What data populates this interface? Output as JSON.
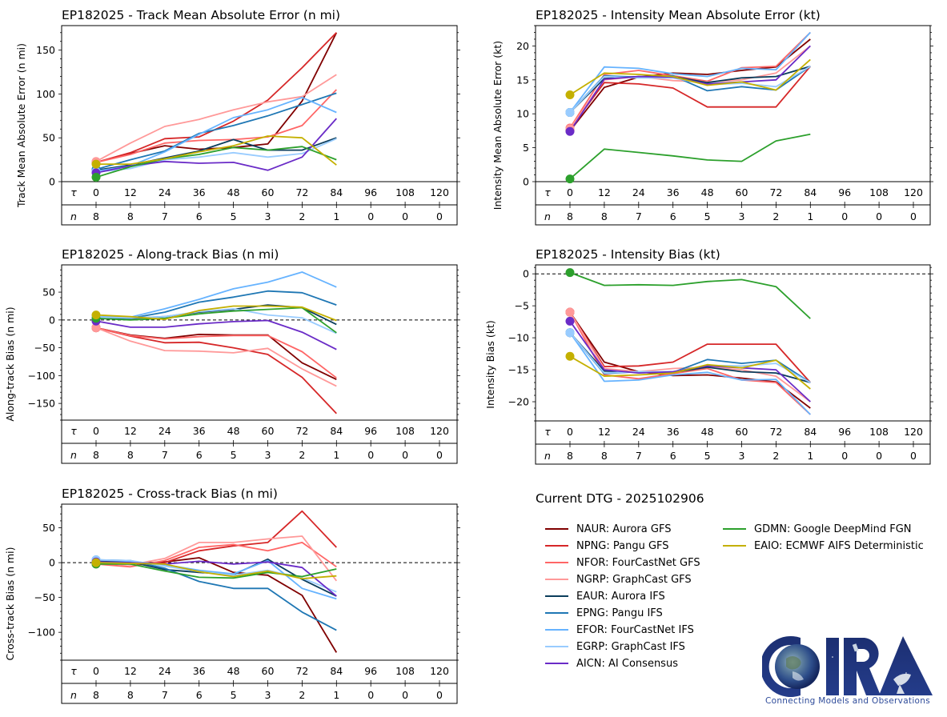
{
  "figure": {
    "dtg_title": "Current DTG - 2025102906"
  },
  "legend": [
    {
      "code": "NAUR",
      "label": "NAUR: Aurora GFS",
      "color": "#800000"
    },
    {
      "code": "NPNG",
      "label": "NPNG: Pangu GFS",
      "color": "#d62728"
    },
    {
      "code": "NFOR",
      "label": "NFOR: FourCastNet GFS",
      "color": "#ff6666"
    },
    {
      "code": "NGRP",
      "label": "NGRP: GraphCast GFS",
      "color": "#ff9999"
    },
    {
      "code": "EAUR",
      "label": "EAUR: Aurora IFS",
      "color": "#0b3d5c"
    },
    {
      "code": "EPNG",
      "label": "EPNG: Pangu IFS",
      "color": "#1f77b4"
    },
    {
      "code": "EFOR",
      "label": "EFOR: FourCastNet IFS",
      "color": "#66b3ff"
    },
    {
      "code": "EGRP",
      "label": "EGRP: GraphCast IFS",
      "color": "#99ccff"
    },
    {
      "code": "AICN",
      "label": "AICN: AI Consensus",
      "color": "#6a2bc7"
    },
    {
      "code": "GDMN",
      "label": "GDMN: Google DeepMind FGN",
      "color": "#2ca02c"
    },
    {
      "code": "EAIO",
      "label": "EAIO: ECMWF AIFS Deterministic",
      "color": "#c4b000"
    }
  ],
  "logo": {
    "text": "CIRA",
    "tagline": "Connecting Models and Observations"
  },
  "chart_data": [
    {
      "id": "track",
      "type": "line",
      "title": "EP182025 - Track Mean Absolute Error (n mi)",
      "ylabel": "Track Mean Absolute Error (n mi)",
      "xlabel": "",
      "ylim": [
        0,
        178
      ],
      "yticks": [
        0,
        50,
        100,
        150
      ],
      "zero_line": false,
      "tau_label": "τ",
      "n_label": "n",
      "x": [
        0,
        12,
        24,
        36,
        48,
        60,
        72,
        84
      ],
      "tau_ticks": [
        0,
        12,
        24,
        36,
        48,
        60,
        72,
        84,
        96,
        108,
        120
      ],
      "n_counts": [
        8,
        8,
        7,
        6,
        5,
        3,
        2,
        1,
        0,
        0,
        0
      ],
      "series": [
        {
          "name": "NAUR",
          "values": [
            22,
            32,
            41,
            37,
            39,
            43,
            92,
            170
          ]
        },
        {
          "name": "NPNG",
          "values": [
            22,
            33,
            49,
            51,
            69,
            93,
            130,
            170
          ]
        },
        {
          "name": "NFOR",
          "values": [
            22,
            31,
            44,
            47,
            48,
            51,
            64,
            105
          ]
        },
        {
          "name": "NGRP",
          "values": [
            23,
            44,
            63,
            71,
            82,
            91,
            97,
            122
          ]
        },
        {
          "name": "EAUR",
          "values": [
            13,
            19,
            27,
            35,
            48,
            36,
            36,
            50
          ]
        },
        {
          "name": "EPNG",
          "values": [
            14,
            25,
            35,
            55,
            64,
            75,
            88,
            101
          ]
        },
        {
          "name": "EFOR",
          "values": [
            12,
            18,
            34,
            54,
            73,
            82,
            96,
            79
          ]
        },
        {
          "name": "EGRP",
          "values": [
            11,
            15,
            25,
            28,
            33,
            28,
            32,
            49
          ]
        },
        {
          "name": "AICN",
          "values": [
            10,
            18,
            23,
            21,
            22,
            13,
            28,
            72
          ]
        },
        {
          "name": "GDMN",
          "values": [
            5,
            17,
            26,
            31,
            39,
            36,
            40,
            25
          ]
        },
        {
          "name": "EAIO",
          "values": [
            20,
            20,
            26,
            34,
            41,
            52,
            50,
            19
          ]
        }
      ]
    },
    {
      "id": "intensity",
      "type": "line",
      "title": "EP182025 - Intensity Mean Absolute Error (kt)",
      "ylabel": "Intensity Mean Absolute Error (kt)",
      "xlabel": "",
      "ylim": [
        0,
        23
      ],
      "yticks": [
        0,
        5,
        10,
        15,
        20
      ],
      "zero_line": false,
      "tau_label": "τ",
      "n_label": "n",
      "x": [
        0,
        12,
        24,
        36,
        48,
        60,
        72,
        84
      ],
      "tau_ticks": [
        0,
        12,
        24,
        36,
        48,
        60,
        72,
        84,
        96,
        108,
        120
      ],
      "n_counts": [
        8,
        8,
        7,
        6,
        5,
        3,
        2,
        1,
        0,
        0,
        0
      ],
      "series": [
        {
          "name": "NAUR",
          "values": [
            7.5,
            13.9,
            15.4,
            16.0,
            15.8,
            16.4,
            16.9,
            21.0
          ]
        },
        {
          "name": "NPNG",
          "values": [
            7.8,
            14.6,
            14.4,
            13.8,
            11.0,
            11.0,
            11.0,
            17.0
          ]
        },
        {
          "name": "NFOR",
          "values": [
            7.9,
            15.8,
            16.4,
            15.6,
            14.8,
            16.8,
            17.0,
            22.0
          ]
        },
        {
          "name": "NGRP",
          "values": [
            7.8,
            15.0,
            15.5,
            14.9,
            14.7,
            15.0,
            16.0,
            20.0
          ]
        },
        {
          "name": "EAUR",
          "values": [
            10.2,
            15.2,
            15.5,
            15.5,
            14.6,
            15.3,
            15.5,
            17.0
          ]
        },
        {
          "name": "EPNG",
          "values": [
            10.2,
            15.6,
            15.4,
            15.6,
            13.4,
            14.0,
            13.5,
            17.0
          ]
        },
        {
          "name": "EFOR",
          "values": [
            10.2,
            16.9,
            16.7,
            15.9,
            15.5,
            16.7,
            16.5,
            22.0
          ]
        },
        {
          "name": "EGRP",
          "values": [
            10.2,
            15.5,
            15.3,
            15.3,
            14.3,
            14.5,
            14.0,
            17.0
          ]
        },
        {
          "name": "AICN",
          "values": [
            7.4,
            15.1,
            15.5,
            15.4,
            14.4,
            14.7,
            15.0,
            20.0
          ]
        },
        {
          "name": "GDMN",
          "values": [
            0.4,
            4.8,
            4.3,
            3.8,
            3.2,
            3.0,
            6.0,
            7.0
          ]
        },
        {
          "name": "EAIO",
          "values": [
            12.8,
            16.0,
            15.8,
            15.5,
            14.2,
            14.7,
            13.5,
            18.0
          ]
        }
      ]
    },
    {
      "id": "along",
      "type": "line",
      "title": "EP182025 - Along-track Bias (n mi)",
      "ylabel": "Along-track Bias (n mi)",
      "xlabel": "",
      "ylim": [
        -180,
        99
      ],
      "yticks": [
        -150,
        -100,
        -50,
        0,
        50
      ],
      "zero_line": true,
      "tau_label": "τ",
      "n_label": "n",
      "x": [
        0,
        12,
        24,
        36,
        48,
        60,
        72,
        84
      ],
      "tau_ticks": [
        0,
        12,
        24,
        36,
        48,
        60,
        72,
        84,
        96,
        108,
        120
      ],
      "n_counts": [
        8,
        8,
        7,
        6,
        5,
        3,
        2,
        1,
        0,
        0,
        0
      ],
      "series": [
        {
          "name": "NAUR",
          "values": [
            -14,
            -27,
            -33,
            -26,
            -27,
            -27,
            -77,
            -107
          ]
        },
        {
          "name": "NPNG",
          "values": [
            -14,
            -29,
            -41,
            -40,
            -50,
            -62,
            -103,
            -168
          ]
        },
        {
          "name": "NFOR",
          "values": [
            -14,
            -28,
            -34,
            -30,
            -28,
            -28,
            -57,
            -104
          ]
        },
        {
          "name": "NGRP",
          "values": [
            -14,
            -38,
            -55,
            -56,
            -59,
            -51,
            -88,
            -119
          ]
        },
        {
          "name": "EAUR",
          "values": [
            4,
            3,
            6,
            14,
            19,
            27,
            22,
            -8
          ]
        },
        {
          "name": "EPNG",
          "values": [
            5,
            3,
            14,
            32,
            41,
            52,
            49,
            27
          ]
        },
        {
          "name": "EFOR",
          "values": [
            6,
            5,
            20,
            37,
            56,
            68,
            86,
            59
          ]
        },
        {
          "name": "EGRP",
          "values": [
            5,
            4,
            6,
            15,
            20,
            9,
            4,
            -24
          ]
        },
        {
          "name": "AICN",
          "values": [
            -2,
            -13,
            -13,
            -7,
            -3,
            -1,
            -22,
            -53
          ]
        },
        {
          "name": "GDMN",
          "values": [
            3,
            0,
            3,
            11,
            16,
            19,
            22,
            -23
          ]
        },
        {
          "name": "EAIO",
          "values": [
            9,
            6,
            1,
            17,
            25,
            25,
            23,
            -1
          ]
        }
      ]
    },
    {
      "id": "intbias",
      "type": "line",
      "title": "EP182025 - Intensity Bias (kt)",
      "ylabel": "Intensity Bias (kt)",
      "xlabel": "",
      "ylim": [
        -23,
        1.4
      ],
      "yticks": [
        -20,
        -15,
        -10,
        -5,
        0
      ],
      "zero_line": true,
      "tau_label": "τ",
      "n_label": "n",
      "x": [
        0,
        12,
        24,
        36,
        48,
        60,
        72,
        84
      ],
      "tau_ticks": [
        0,
        12,
        24,
        36,
        48,
        60,
        72,
        84,
        96,
        108,
        120
      ],
      "n_counts": [
        8,
        8,
        7,
        6,
        5,
        3,
        2,
        1,
        0,
        0,
        0
      ],
      "series": [
        {
          "name": "NAUR",
          "values": [
            -6.0,
            -13.8,
            -15.3,
            -15.9,
            -15.8,
            -16.3,
            -16.9,
            -21.0
          ]
        },
        {
          "name": "NPNG",
          "values": [
            -6.0,
            -14.5,
            -14.4,
            -13.8,
            -11.0,
            -11.0,
            -11.0,
            -17.0
          ]
        },
        {
          "name": "NFOR",
          "values": [
            -6.0,
            -15.8,
            -16.4,
            -15.6,
            -14.8,
            -16.6,
            -17.0,
            -22.0
          ]
        },
        {
          "name": "NGRP",
          "values": [
            -6.0,
            -14.8,
            -15.3,
            -14.8,
            -14.6,
            -15.0,
            -16.0,
            -20.0
          ]
        },
        {
          "name": "EAUR",
          "values": [
            -9.2,
            -15.2,
            -15.4,
            -15.4,
            -14.6,
            -15.3,
            -15.5,
            -17.0
          ]
        },
        {
          "name": "EPNG",
          "values": [
            -9.2,
            -15.6,
            -15.3,
            -15.4,
            -13.4,
            -14.0,
            -13.5,
            -17.0
          ]
        },
        {
          "name": "EFOR",
          "values": [
            -9.2,
            -16.8,
            -16.6,
            -15.8,
            -15.4,
            -16.6,
            -16.5,
            -22.0
          ]
        },
        {
          "name": "EGRP",
          "values": [
            -9.2,
            -15.5,
            -15.3,
            -15.3,
            -14.3,
            -14.4,
            -14.0,
            -17.0
          ]
        },
        {
          "name": "AICN",
          "values": [
            -7.4,
            -15.0,
            -15.5,
            -15.3,
            -14.4,
            -14.7,
            -15.0,
            -20.0
          ]
        },
        {
          "name": "GDMN",
          "values": [
            0.2,
            -1.8,
            -1.7,
            -1.8,
            -1.2,
            -0.9,
            -2.0,
            -7.0
          ]
        },
        {
          "name": "EAIO",
          "values": [
            -12.9,
            -16.0,
            -15.8,
            -15.5,
            -14.2,
            -14.7,
            -13.5,
            -18.0
          ]
        }
      ]
    },
    {
      "id": "cross",
      "type": "line",
      "title": "EP182025 - Cross-track Bias (n mi)",
      "ylabel": "Cross-track Bias (n mi)",
      "xlabel": "",
      "ylim": [
        -140,
        84
      ],
      "yticks": [
        -100,
        -50,
        0,
        50
      ],
      "zero_line": true,
      "tau_label": "τ",
      "n_label": "n",
      "x": [
        0,
        12,
        24,
        36,
        48,
        60,
        72,
        84
      ],
      "tau_ticks": [
        0,
        12,
        24,
        36,
        48,
        60,
        72,
        84,
        96,
        108,
        120
      ],
      "n_counts": [
        8,
        8,
        7,
        6,
        5,
        3,
        2,
        1,
        0,
        0,
        0
      ],
      "series": [
        {
          "name": "NAUR",
          "values": [
            1,
            -1,
            1,
            7,
            -14,
            -18,
            -47,
            -129
          ]
        },
        {
          "name": "NPNG",
          "values": [
            -1,
            -3,
            0,
            17,
            24,
            29,
            74,
            22
          ]
        },
        {
          "name": "NFOR",
          "values": [
            -2,
            -6,
            3,
            22,
            26,
            17,
            29,
            -6
          ]
        },
        {
          "name": "NGRP",
          "values": [
            -1,
            -3,
            6,
            29,
            29,
            34,
            38,
            -26
          ]
        },
        {
          "name": "EAUR",
          "values": [
            2,
            1,
            -10,
            -14,
            -17,
            5,
            -24,
            -48
          ]
        },
        {
          "name": "EPNG",
          "values": [
            4,
            3,
            -8,
            -27,
            -37,
            -37,
            -71,
            -97
          ]
        },
        {
          "name": "EFOR",
          "values": [
            4,
            2,
            -3,
            -11,
            -16,
            3,
            -37,
            -52
          ]
        },
        {
          "name": "EGRP",
          "values": [
            4,
            3,
            -5,
            -13,
            -18,
            -11,
            -22,
            -42
          ]
        },
        {
          "name": "AICN",
          "values": [
            1,
            0,
            -2,
            2,
            -2,
            1,
            -7,
            -48
          ]
        },
        {
          "name": "GDMN",
          "values": [
            -2,
            -2,
            -12,
            -21,
            -22,
            -14,
            -20,
            -9
          ]
        },
        {
          "name": "EAIO",
          "values": [
            0,
            -1,
            -2,
            -13,
            -20,
            -12,
            -23,
            -19
          ]
        }
      ]
    }
  ]
}
